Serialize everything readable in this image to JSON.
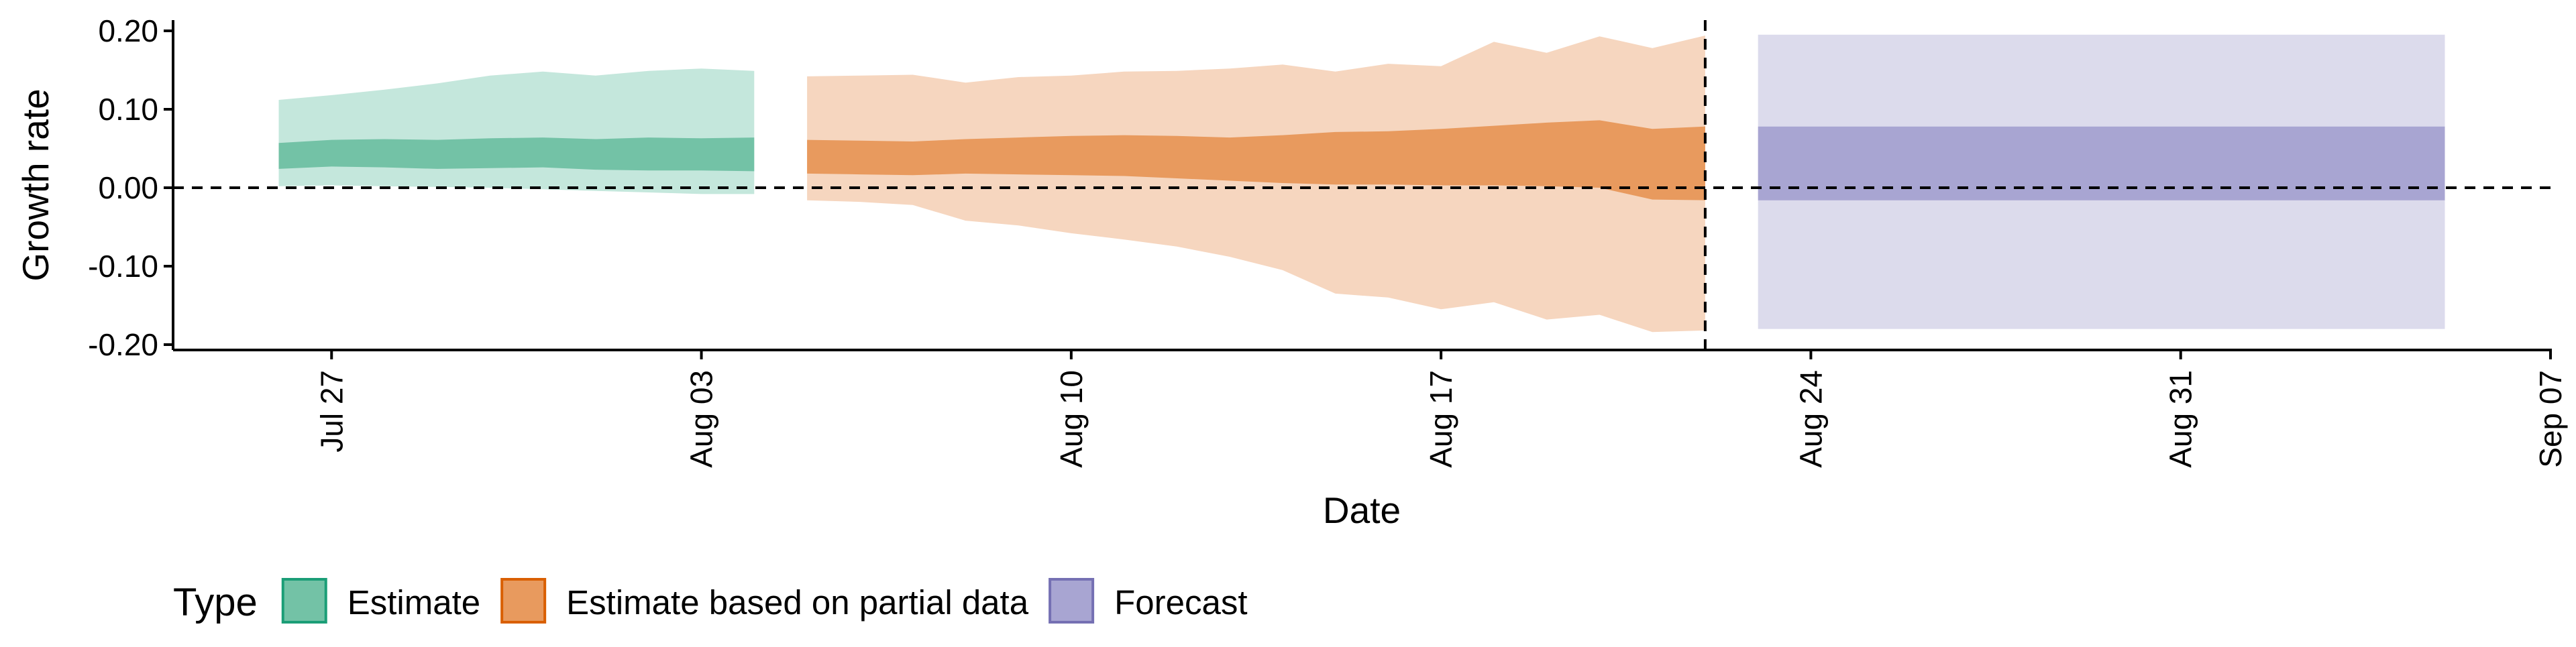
{
  "chart_data": {
    "type": "area",
    "xlabel": "Date",
    "ylabel": "Growth rate",
    "x_axis": {
      "start": "2020-07-24",
      "end": "2020-09-07",
      "ticks": [
        {
          "date": "2020-07-27",
          "label": "Jul 27"
        },
        {
          "date": "2020-08-03",
          "label": "Aug 03"
        },
        {
          "date": "2020-08-10",
          "label": "Aug 10"
        },
        {
          "date": "2020-08-17",
          "label": "Aug 17"
        },
        {
          "date": "2020-08-24",
          "label": "Aug 24"
        },
        {
          "date": "2020-08-31",
          "label": "Aug 31"
        },
        {
          "date": "2020-09-07",
          "label": "Sep 07"
        }
      ]
    },
    "y_axis": {
      "ylim": [
        -0.2,
        0.2
      ],
      "ticks": [
        {
          "value": 0.2,
          "label": "0.20"
        },
        {
          "value": 0.1,
          "label": "0.10"
        },
        {
          "value": 0.0,
          "label": "0.00"
        },
        {
          "value": -0.1,
          "label": "-0.10"
        },
        {
          "value": -0.2,
          "label": "-0.20"
        }
      ]
    },
    "reference_lines": {
      "horizontal_y": 0.0,
      "vertical_date": "2020-08-22"
    },
    "legend": {
      "title": "Type",
      "position": "bottom-left",
      "entries": [
        {
          "label": "Estimate",
          "fill": "#73c2a6",
          "stroke": "#1b9e77"
        },
        {
          "label": "Estimate based on partial data",
          "fill": "#e89a5e",
          "stroke": "#d95f02"
        },
        {
          "label": "Forecast",
          "fill": "#a8a5d2",
          "stroke": "#7570b3"
        }
      ]
    },
    "series": [
      {
        "name": "Estimate",
        "outer_fill": "#c4e7dc",
        "inner_fill": "#73c2a6",
        "dates": [
          "2020-07-26",
          "2020-07-27",
          "2020-07-28",
          "2020-07-29",
          "2020-07-30",
          "2020-07-31",
          "2020-08-01",
          "2020-08-02",
          "2020-08-03",
          "2020-08-04"
        ],
        "outer_upper": [
          0.112,
          0.118,
          0.125,
          0.133,
          0.143,
          0.148,
          0.143,
          0.149,
          0.152,
          0.149
        ],
        "inner_upper": [
          0.057,
          0.061,
          0.062,
          0.061,
          0.063,
          0.064,
          0.062,
          0.064,
          0.063,
          0.064
        ],
        "inner_lower": [
          0.024,
          0.027,
          0.026,
          0.024,
          0.025,
          0.026,
          0.023,
          0.022,
          0.022,
          0.021
        ],
        "outer_lower": [
          0.002,
          0.003,
          0.002,
          0.001,
          0.0,
          -0.002,
          -0.004,
          -0.006,
          -0.008,
          -0.008
        ]
      },
      {
        "name": "Estimate based on partial data",
        "outer_fill": "#f6d6bf",
        "inner_fill": "#e89a5e",
        "dates": [
          "2020-08-05",
          "2020-08-06",
          "2020-08-07",
          "2020-08-08",
          "2020-08-09",
          "2020-08-10",
          "2020-08-11",
          "2020-08-12",
          "2020-08-13",
          "2020-08-14",
          "2020-08-15",
          "2020-08-16",
          "2020-08-17",
          "2020-08-18",
          "2020-08-19",
          "2020-08-20",
          "2020-08-21",
          "2020-08-22"
        ],
        "outer_upper": [
          0.142,
          0.143,
          0.144,
          0.134,
          0.141,
          0.143,
          0.148,
          0.149,
          0.152,
          0.157,
          0.148,
          0.158,
          0.155,
          0.186,
          0.172,
          0.193,
          0.178,
          0.194
        ],
        "inner_upper": [
          0.061,
          0.06,
          0.059,
          0.062,
          0.064,
          0.066,
          0.067,
          0.066,
          0.064,
          0.067,
          0.071,
          0.072,
          0.075,
          0.079,
          0.083,
          0.086,
          0.075,
          0.078
        ],
        "inner_lower": [
          0.018,
          0.017,
          0.016,
          0.018,
          0.017,
          0.016,
          0.015,
          0.012,
          0.009,
          0.006,
          0.004,
          0.004,
          0.003,
          0.003,
          0.002,
          0.0,
          -0.015,
          -0.016
        ],
        "outer_lower": [
          -0.016,
          -0.018,
          -0.022,
          -0.042,
          -0.048,
          -0.058,
          -0.066,
          -0.075,
          -0.088,
          -0.105,
          -0.135,
          -0.14,
          -0.155,
          -0.146,
          -0.168,
          -0.162,
          -0.184,
          -0.182
        ]
      },
      {
        "name": "Forecast",
        "outer_fill": "#dcdbec",
        "inner_fill": "#a8a5d2",
        "dates": [
          "2020-08-23",
          "2020-09-05"
        ],
        "outer_upper": [
          0.195,
          0.195
        ],
        "inner_upper": [
          0.078,
          0.078
        ],
        "inner_lower": [
          -0.016,
          -0.016
        ],
        "outer_lower": [
          -0.18,
          -0.18
        ]
      }
    ]
  }
}
